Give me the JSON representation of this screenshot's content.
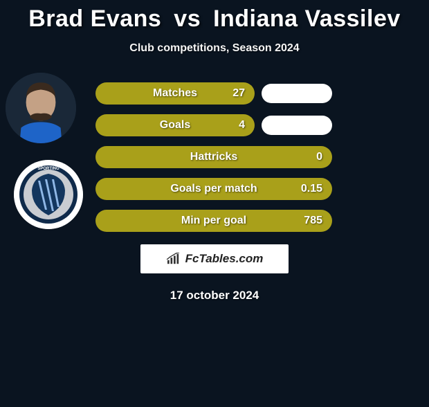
{
  "background_color": "#0a1420",
  "title": {
    "player1": "Brad Evans",
    "vs": "vs",
    "player2": "Indiana Vassilev",
    "color": "#ffffff",
    "fontsize": 34,
    "fontweight": 900
  },
  "subtitle": {
    "text": "Club competitions, Season 2024",
    "fontsize": 16,
    "color": "#f5f5f5"
  },
  "bar_color": "#a9a01a",
  "bar_text_color": "#ffffff",
  "pill_color": "#ffffff",
  "rows": [
    {
      "label": "Matches",
      "value": "27",
      "show_pill": true
    },
    {
      "label": "Goals",
      "value": "4",
      "show_pill": true
    },
    {
      "label": "Hattricks",
      "value": "0",
      "show_pill": false
    },
    {
      "label": "Goals per match",
      "value": "0.15",
      "show_pill": false
    },
    {
      "label": "Min per goal",
      "value": "785",
      "show_pill": false
    }
  ],
  "attribution": {
    "text": "FcTables.com",
    "background": "#ffffff",
    "text_color": "#222222"
  },
  "date": {
    "text": "17 october 2024",
    "fontsize": 17
  },
  "player_avatar": {
    "skin": "#c4a185",
    "hair": "#3a2a1e",
    "shirt": "#1e64c8"
  },
  "club_badge": {
    "outer": "#0f2a4a",
    "mid": "#c9ccd1",
    "inner": "#13365e",
    "stripes": "#8fb7e6"
  }
}
